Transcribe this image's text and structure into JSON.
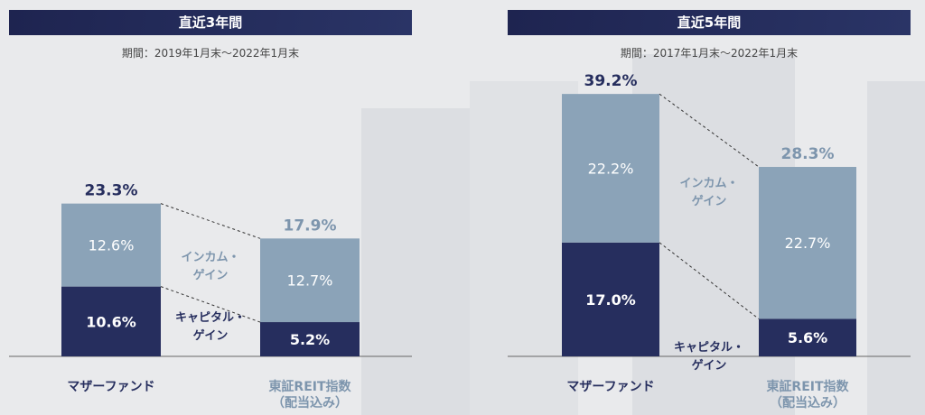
{
  "colors": {
    "capital": "#262e5e",
    "income": "#8ba3b8",
    "fund_text": "#262e5e",
    "reit_text": "#7d95ad"
  },
  "legend": {
    "income": "インカム・\nゲイン",
    "capital": "キャピタル・\nゲイン"
  },
  "chart_data": [
    {
      "type": "bar",
      "stacked": true,
      "title": "直近3年間",
      "period": "期間：2019年1月末～2022年1月末",
      "categories": [
        "マザーファンド",
        "東証REIT指数\n（配当込み）"
      ],
      "series": [
        {
          "name": "キャピタル・ゲイン",
          "values": [
            10.6,
            5.2
          ],
          "labels": [
            "10.6%",
            "5.2%"
          ]
        },
        {
          "name": "インカム・ゲイン",
          "values": [
            12.6,
            12.7
          ],
          "labels": [
            "12.6%",
            "12.7%"
          ]
        }
      ],
      "totals": [
        "23.3%",
        "17.9%"
      ],
      "total_values": [
        23.3,
        17.9
      ]
    },
    {
      "type": "bar",
      "stacked": true,
      "title": "直近5年間",
      "period": "期間：2017年1月末～2022年1月末",
      "categories": [
        "マザーファンド",
        "東証REIT指数\n（配当込み）"
      ],
      "series": [
        {
          "name": "キャピタル・ゲイン",
          "values": [
            17.0,
            5.6
          ],
          "labels": [
            "17.0%",
            "5.6%"
          ]
        },
        {
          "name": "インカム・ゲイン",
          "values": [
            22.2,
            22.7
          ],
          "labels": [
            "22.2%",
            "22.7%"
          ]
        }
      ],
      "totals": [
        "39.2%",
        "28.3%"
      ],
      "total_values": [
        39.2,
        28.3
      ]
    }
  ]
}
